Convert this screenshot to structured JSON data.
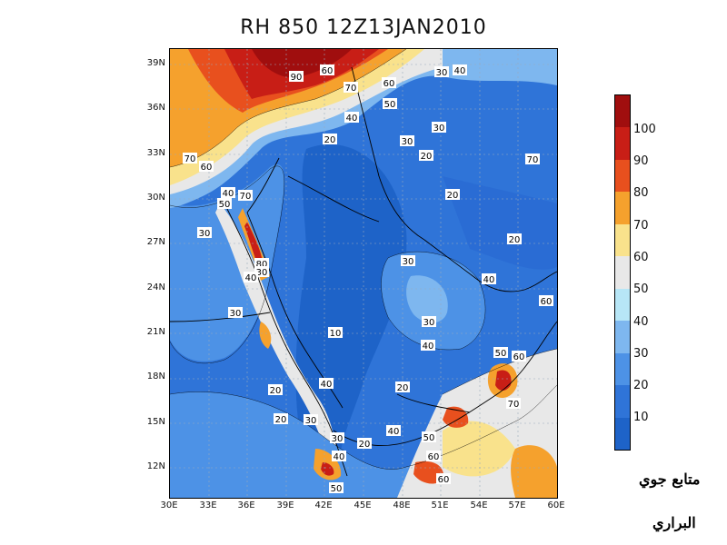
{
  "title": "RH 850  12Z13JAN2010",
  "lat_labels": [
    "39N",
    "36N",
    "33N",
    "30N",
    "27N",
    "24N",
    "21N",
    "18N",
    "15N",
    "12N"
  ],
  "lon_labels": [
    "30E",
    "33E",
    "36E",
    "39E",
    "42E",
    "45E",
    "48E",
    "51E",
    "54E",
    "57E",
    "60E"
  ],
  "colorbar": {
    "labels": [
      "100",
      "90",
      "80",
      "70",
      "60",
      "50",
      "40",
      "30",
      "20",
      "10"
    ],
    "colors": [
      "#1e63c8",
      "#2f74d8",
      "#4d92e6",
      "#7eb7ef",
      "#b7e6f6",
      "#e8e8e8",
      "#f9e28c",
      "#f5a12d",
      "#e8501e",
      "#c81e16",
      "#a00e0e"
    ]
  },
  "contour_labels": [
    "90",
    "60",
    "30",
    "40",
    "70",
    "60",
    "50",
    "40",
    "20",
    "30",
    "70",
    "60",
    "30",
    "20",
    "70",
    "50",
    "40",
    "70",
    "30",
    "20",
    "80",
    "30",
    "40",
    "20",
    "30",
    "40",
    "30",
    "60",
    "10",
    "30",
    "40",
    "50",
    "20",
    "20",
    "40",
    "60",
    "20",
    "30",
    "70",
    "30",
    "40",
    "50",
    "40",
    "50",
    "20",
    "60",
    "60"
  ],
  "credit": {
    "line1": "متابع جوي",
    "line2": "البراري"
  }
}
